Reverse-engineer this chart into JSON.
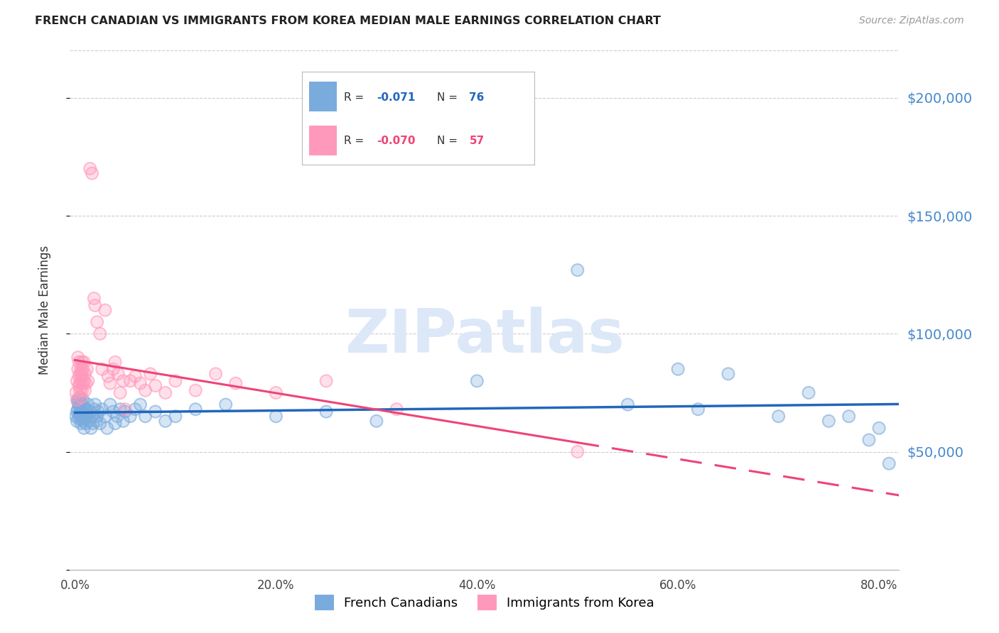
{
  "title": "FRENCH CANADIAN VS IMMIGRANTS FROM KOREA MEDIAN MALE EARNINGS CORRELATION CHART",
  "source": "Source: ZipAtlas.com",
  "ylabel": "Median Male Earnings",
  "ytick_vals": [
    0,
    50000,
    100000,
    150000,
    200000
  ],
  "ytick_labels": [
    "",
    "$50,000",
    "$100,000",
    "$150,000",
    "$200,000"
  ],
  "ylim": [
    0,
    220000
  ],
  "xlim": [
    -0.005,
    0.82
  ],
  "blue_label": "French Canadians",
  "pink_label": "Immigrants from Korea",
  "blue_R": "-0.071",
  "blue_N": "76",
  "pink_R": "-0.070",
  "pink_N": "57",
  "blue_color": "#7AABDD",
  "pink_color": "#FF99BB",
  "blue_line_color": "#2266BB",
  "pink_line_color": "#EE4477",
  "background_color": "#FFFFFF",
  "watermark_color": "#DCE8F8",
  "blue_x": [
    0.001,
    0.002,
    0.002,
    0.003,
    0.003,
    0.003,
    0.004,
    0.004,
    0.004,
    0.005,
    0.005,
    0.005,
    0.006,
    0.006,
    0.006,
    0.006,
    0.007,
    0.007,
    0.007,
    0.008,
    0.008,
    0.008,
    0.009,
    0.009,
    0.01,
    0.01,
    0.011,
    0.011,
    0.012,
    0.013,
    0.014,
    0.015,
    0.016,
    0.017,
    0.018,
    0.019,
    0.02,
    0.021,
    0.022,
    0.023,
    0.025,
    0.027,
    0.03,
    0.032,
    0.035,
    0.038,
    0.04,
    0.042,
    0.045,
    0.048,
    0.05,
    0.055,
    0.06,
    0.065,
    0.07,
    0.08,
    0.09,
    0.1,
    0.12,
    0.15,
    0.2,
    0.25,
    0.3,
    0.4,
    0.5,
    0.55,
    0.6,
    0.62,
    0.65,
    0.7,
    0.73,
    0.75,
    0.77,
    0.79,
    0.8,
    0.81
  ],
  "blue_y": [
    65000,
    67000,
    63000,
    72000,
    68000,
    71000,
    70000,
    64000,
    66000,
    73000,
    69000,
    65000,
    62000,
    68000,
    71000,
    66000,
    64000,
    70000,
    67000,
    63000,
    65000,
    72000,
    68000,
    60000,
    66000,
    64000,
    62000,
    68000,
    65000,
    70000,
    63000,
    67000,
    60000,
    65000,
    62000,
    68000,
    70000,
    63000,
    65000,
    67000,
    62000,
    68000,
    65000,
    60000,
    70000,
    67000,
    62000,
    65000,
    68000,
    63000,
    67000,
    65000,
    68000,
    70000,
    65000,
    67000,
    63000,
    65000,
    68000,
    70000,
    65000,
    67000,
    63000,
    80000,
    127000,
    70000,
    85000,
    68000,
    83000,
    65000,
    75000,
    63000,
    65000,
    55000,
    60000,
    45000
  ],
  "pink_x": [
    0.001,
    0.002,
    0.002,
    0.003,
    0.003,
    0.004,
    0.004,
    0.004,
    0.005,
    0.005,
    0.005,
    0.006,
    0.006,
    0.006,
    0.007,
    0.007,
    0.007,
    0.008,
    0.008,
    0.009,
    0.009,
    0.01,
    0.01,
    0.011,
    0.012,
    0.013,
    0.015,
    0.017,
    0.019,
    0.02,
    0.022,
    0.025,
    0.027,
    0.03,
    0.033,
    0.035,
    0.038,
    0.04,
    0.043,
    0.045,
    0.048,
    0.05,
    0.055,
    0.06,
    0.065,
    0.07,
    0.075,
    0.08,
    0.09,
    0.1,
    0.12,
    0.14,
    0.16,
    0.2,
    0.25,
    0.32,
    0.5
  ],
  "pink_y": [
    75000,
    80000,
    72000,
    90000,
    85000,
    82000,
    78000,
    88000,
    76000,
    83000,
    79000,
    85000,
    73000,
    80000,
    88000,
    76000,
    83000,
    79000,
    85000,
    80000,
    88000,
    76000,
    83000,
    79000,
    85000,
    80000,
    170000,
    168000,
    115000,
    112000,
    105000,
    100000,
    85000,
    110000,
    82000,
    79000,
    85000,
    88000,
    83000,
    75000,
    80000,
    68000,
    80000,
    82000,
    79000,
    76000,
    83000,
    78000,
    75000,
    80000,
    76000,
    83000,
    79000,
    75000,
    80000,
    68000,
    50000
  ]
}
